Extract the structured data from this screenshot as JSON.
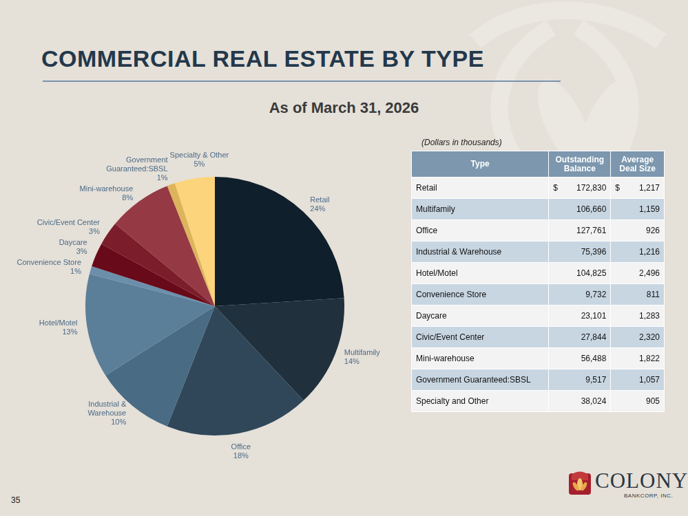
{
  "title": "COMMERCIAL REAL ESTATE BY TYPE",
  "subtitle": "As of March 31, 2026",
  "chart_data": {
    "type": "pie",
    "categories": [
      "Retail",
      "Multifamily",
      "Office",
      "Industrial & Warehouse",
      "Hotel/Motel",
      "Convenience Store",
      "Daycare",
      "Civic/Event Center",
      "Mini-warehouse",
      "Government Guaranteed:SBSL",
      "Specialty & Other"
    ],
    "values": [
      24,
      14,
      18,
      10,
      13,
      1,
      3,
      3,
      8,
      1,
      5
    ],
    "value_labels": [
      "24%",
      "14%",
      "18%",
      "10%",
      "13%",
      "1%",
      "3%",
      "3%",
      "8%",
      "1%",
      "5%"
    ],
    "colors": [
      "#0f1f2b",
      "#20303d",
      "#2f4759",
      "#4a6b84",
      "#5b7f99",
      "#6b8fab",
      "#680a1a",
      "#7b1d2b",
      "#953a45",
      "#ddb45c",
      "#fbd47c"
    ],
    "data_labels": true
  },
  "table": {
    "note": "(Dollars in thousands)",
    "currency": "$",
    "header": [
      "Type",
      "Outstanding Balance",
      "Average Deal Size"
    ],
    "rows": [
      [
        "Retail",
        "172,830",
        "1,217"
      ],
      [
        "Multifamily",
        "106,660",
        "1,159"
      ],
      [
        "Office",
        "127,761",
        "926"
      ],
      [
        "Industrial & Warehouse",
        "75,396",
        "1,216"
      ],
      [
        "Hotel/Motel",
        "104,825",
        "2,496"
      ],
      [
        "Convenience Store",
        "9,732",
        "811"
      ],
      [
        "Daycare",
        "23,101",
        "1,283"
      ],
      [
        "Civic/Event Center",
        "27,844",
        "2,320"
      ],
      [
        "Mini-warehouse",
        "56,488",
        "1,822"
      ],
      [
        "Government Guaranteed:SBSL",
        "9,517",
        "1,057"
      ],
      [
        "Specialty and Other",
        "38,024",
        "905"
      ]
    ]
  },
  "page_number": "35",
  "logo": {
    "name": "COLONY",
    "subtitle": "BANKCORP, INC."
  }
}
